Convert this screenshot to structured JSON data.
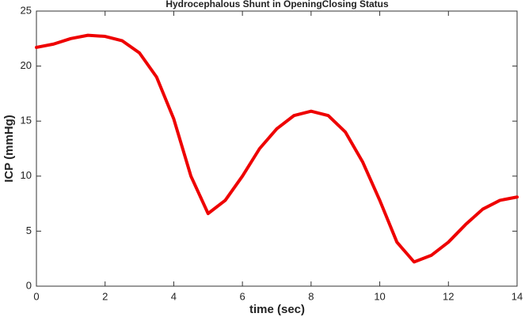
{
  "chart_data": {
    "type": "line",
    "title": "Hydrocephalous Shunt in OpeningClosing Status",
    "xlabel": "time (sec)",
    "ylabel": "ICP (mmHg)",
    "x": [
      0,
      0.5,
      1,
      1.5,
      2,
      2.5,
      3,
      3.5,
      4,
      4.5,
      5,
      5.5,
      6,
      6.5,
      7,
      7.5,
      8,
      8.5,
      9,
      9.5,
      10,
      10.5,
      11,
      11.5,
      12,
      12.5,
      13,
      13.5,
      14
    ],
    "series": [
      {
        "color": "#ee0000",
        "values": [
          21.7,
          22.0,
          22.5,
          22.8,
          22.7,
          22.3,
          21.2,
          19.0,
          15.2,
          10.0,
          6.6,
          7.8,
          10.0,
          12.5,
          14.3,
          15.5,
          15.9,
          15.5,
          14.0,
          11.3,
          7.8,
          4.0,
          2.2,
          2.8,
          4.0,
          5.6,
          7.0,
          7.8,
          8.1
        ]
      }
    ],
    "xlim": [
      0,
      14
    ],
    "xticks": [
      0,
      2,
      4,
      6,
      8,
      10,
      12,
      14
    ],
    "ylim": [
      0,
      25
    ],
    "yticks": [
      0,
      5,
      10,
      15,
      20,
      25
    ]
  }
}
